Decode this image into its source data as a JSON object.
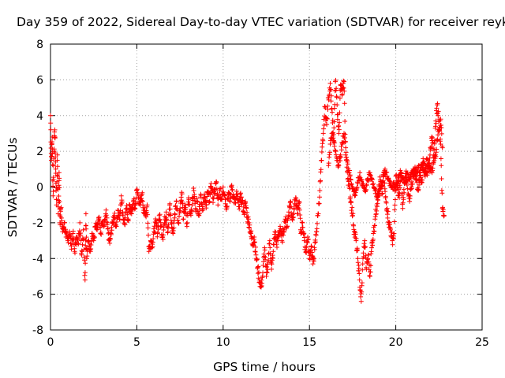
{
  "chart_data": {
    "type": "scatter",
    "title": "Day 359 of 2022, Sidereal Day-to-day VTEC variation (SDTVAR) for receiver reyk",
    "xlabel": "GPS time / hours",
    "ylabel": "SDTVAR / TECUs",
    "xlim": [
      0,
      25
    ],
    "ylim": [
      -8,
      8
    ],
    "xticks": [
      0,
      5,
      10,
      15,
      20,
      25
    ],
    "yticks": [
      -8,
      -6,
      -4,
      -2,
      0,
      2,
      4,
      6,
      8
    ],
    "grid": true,
    "marker": "+",
    "series_color": "#ff0000",
    "series": [
      {
        "name": "SDTVAR",
        "x": [
          0.0,
          0.05,
          0.1,
          0.15,
          0.2,
          0.25,
          0.3,
          0.35,
          0.4,
          0.45,
          0.5,
          0.55,
          0.6,
          0.7,
          0.8,
          0.9,
          1.0,
          1.1,
          1.2,
          1.3,
          1.4,
          1.5,
          1.6,
          1.7,
          1.8,
          1.9,
          2.0,
          2.05,
          2.1,
          2.2,
          2.3,
          2.4,
          2.5,
          2.6,
          2.7,
          2.8,
          2.9,
          3.0,
          3.1,
          3.2,
          3.3,
          3.4,
          3.5,
          3.6,
          3.7,
          3.8,
          3.9,
          4.0,
          4.1,
          4.2,
          4.3,
          4.4,
          4.5,
          4.6,
          4.7,
          4.8,
          4.9,
          5.0,
          5.1,
          5.2,
          5.3,
          5.4,
          5.5,
          5.6,
          5.7,
          5.8,
          5.9,
          6.0,
          6.1,
          6.2,
          6.3,
          6.4,
          6.5,
          6.6,
          6.7,
          6.8,
          6.9,
          7.0,
          7.1,
          7.2,
          7.3,
          7.4,
          7.5,
          7.6,
          7.7,
          7.8,
          7.9,
          8.0,
          8.1,
          8.2,
          8.3,
          8.4,
          8.5,
          8.6,
          8.7,
          8.8,
          8.9,
          9.0,
          9.1,
          9.2,
          9.3,
          9.4,
          9.5,
          9.6,
          9.7,
          9.8,
          9.9,
          10.0,
          10.1,
          10.2,
          10.3,
          10.4,
          10.5,
          10.6,
          10.7,
          10.8,
          10.9,
          11.0,
          11.1,
          11.2,
          11.3,
          11.4,
          11.5,
          11.6,
          11.7,
          11.8,
          11.9,
          12.0,
          12.1,
          12.2,
          12.3,
          12.4,
          12.5,
          12.6,
          12.7,
          12.8,
          12.9,
          13.0,
          13.1,
          13.2,
          13.3,
          13.4,
          13.5,
          13.6,
          13.7,
          13.8,
          13.9,
          14.0,
          14.1,
          14.2,
          14.3,
          14.4,
          14.5,
          14.6,
          14.7,
          14.8,
          14.9,
          15.0,
          15.1,
          15.2,
          15.3,
          15.4,
          15.5,
          15.6,
          15.7,
          15.8,
          15.9,
          16.0,
          16.1,
          16.2,
          16.3,
          16.4,
          16.5,
          16.6,
          16.7,
          16.8,
          16.9,
          17.0,
          17.1,
          17.2,
          17.3,
          17.4,
          17.5,
          17.6,
          17.7,
          17.8,
          17.9,
          18.0,
          18.1,
          18.2,
          18.3,
          18.4,
          18.5,
          18.6,
          18.7,
          18.8,
          18.9,
          19.0,
          19.1,
          19.2,
          19.3,
          19.4,
          19.5,
          19.6,
          19.7,
          19.8,
          19.9,
          20.0,
          20.1,
          20.2,
          20.3,
          20.4,
          20.5,
          20.6,
          20.7,
          20.8,
          20.9,
          21.0,
          21.1,
          21.2,
          21.3,
          21.4,
          21.5,
          21.6,
          21.7,
          21.8,
          21.9,
          22.0,
          22.1,
          22.2,
          22.3,
          22.4,
          22.5,
          22.6,
          22.7,
          22.8
        ],
        "y": [
          4.0,
          1.5,
          2.8,
          -0.5,
          2.0,
          3.2,
          1.0,
          -1.0,
          1.8,
          -1.5,
          0.8,
          -2.0,
          -1.2,
          -2.5,
          -2.0,
          -2.8,
          -3.0,
          -2.5,
          -3.3,
          -2.6,
          -3.6,
          -2.8,
          -3.2,
          -2.0,
          -3.8,
          -2.4,
          -5.2,
          -1.5,
          -4.0,
          -3.0,
          -3.5,
          -2.6,
          -3.0,
          -2.2,
          -2.4,
          -1.8,
          -2.6,
          -2.0,
          -2.2,
          -1.5,
          -2.0,
          -3.0,
          -2.6,
          -2.0,
          -1.6,
          -2.2,
          -1.3,
          -1.8,
          -0.5,
          -1.6,
          -2.1,
          -1.2,
          -1.8,
          -1.0,
          -1.5,
          -0.8,
          -1.2,
          -0.2,
          -0.6,
          -1.0,
          -0.4,
          -1.3,
          -1.6,
          -1.0,
          -3.6,
          -3.0,
          -3.2,
          -2.5,
          -2.0,
          -2.6,
          -1.6,
          -2.2,
          -2.8,
          -2.0,
          -1.4,
          -2.5,
          -1.0,
          -2.0,
          -2.6,
          -1.5,
          -0.8,
          -2.0,
          -1.2,
          -0.3,
          -1.8,
          -1.0,
          -2.2,
          -0.6,
          -1.5,
          -1.0,
          -0.2,
          -1.2,
          -0.8,
          -1.6,
          -0.4,
          -1.2,
          -0.6,
          -1.0,
          -0.3,
          -0.8,
          0.2,
          -0.6,
          -0.4,
          0.3,
          -1.0,
          -0.2,
          -0.7,
          0.0,
          -0.5,
          -1.1,
          -0.3,
          -0.8,
          0.1,
          -0.6,
          -0.9,
          -0.4,
          -1.1,
          -0.6,
          -0.8,
          -1.4,
          -0.9,
          -1.7,
          -2.0,
          -2.6,
          -3.2,
          -2.8,
          -3.8,
          -4.5,
          -5.2,
          -5.6,
          -4.8,
          -3.4,
          -5.0,
          -4.2,
          -3.0,
          -4.6,
          -3.6,
          -2.5,
          -3.2,
          -2.8,
          -2.2,
          -3.0,
          -2.4,
          -1.8,
          -2.2,
          -1.4,
          -0.8,
          -1.8,
          -1.2,
          -0.6,
          -1.5,
          -0.8,
          -2.6,
          -2.0,
          -3.0,
          -3.6,
          -2.8,
          -4.0,
          -3.3,
          -4.3,
          -3.5,
          -2.5,
          -1.5,
          -0.2,
          1.5,
          3.0,
          4.5,
          3.5,
          5.0,
          5.8,
          4.4,
          2.5,
          5.9,
          4.6,
          3.0,
          5.7,
          5.2,
          5.9,
          1.8,
          0.8,
          0.0,
          -0.8,
          -1.6,
          -2.5,
          -3.0,
          -4.0,
          -5.2,
          -6.4,
          -4.0,
          -3.0,
          -4.6,
          -3.8,
          -5.0,
          -3.4,
          -2.6,
          -1.8,
          -1.0,
          -0.2,
          0.4,
          -0.4,
          0.8,
          -0.6,
          -1.2,
          -2.0,
          -2.4,
          -3.0,
          -2.6,
          0.6,
          0.0,
          -0.6,
          0.8,
          -1.2,
          0.2,
          0.9,
          -0.4,
          -0.8,
          0.0,
          0.6,
          1.0,
          0.4,
          -0.2,
          0.8,
          0.4,
          1.2,
          0.6,
          1.6,
          1.0,
          2.2,
          2.6,
          1.8,
          3.4,
          4.6,
          3.8,
          2.4,
          -1.2,
          -1.6
        ],
        "x2": [
          16.1,
          16.2,
          16.3,
          16.4,
          16.5,
          16.6,
          16.7,
          16.8,
          16.9,
          17.0,
          17.1,
          17.2,
          17.3,
          17.4,
          17.5,
          17.6,
          17.7,
          17.8,
          17.9,
          18.0,
          18.1,
          18.2,
          18.3,
          18.4,
          18.5,
          18.6,
          18.7,
          18.8,
          18.9,
          19.0,
          19.1,
          19.2,
          19.3,
          19.4,
          19.5,
          19.6,
          19.7,
          19.8,
          19.9,
          20.0,
          20.1,
          20.2,
          20.3,
          20.4,
          20.5,
          20.6,
          20.7,
          20.8,
          20.9,
          21.0,
          21.1,
          21.2,
          21.3,
          21.4,
          21.5,
          21.6,
          21.7,
          21.8,
          21.9,
          22.0,
          22.1,
          22.2,
          22.3,
          22.4,
          22.5,
          22.6,
          22.7
        ],
        "y2": [
          1.2,
          2.4,
          3.0,
          2.6,
          2.0,
          1.6,
          1.2,
          1.8,
          2.4,
          3.0,
          2.2,
          1.4,
          0.8,
          0.4,
          0.0,
          -0.4,
          -0.2,
          0.2,
          0.6,
          0.4,
          0.2,
          -0.2,
          0.1,
          0.4,
          0.8,
          0.5,
          0.2,
          -0.2,
          -0.6,
          -0.4,
          -0.1,
          0.3,
          0.6,
          0.8,
          0.6,
          0.4,
          0.2,
          0.1,
          0.0,
          0.0,
          0.3,
          0.6,
          0.8,
          0.5,
          0.2,
          0.4,
          0.7,
          0.5,
          0.8,
          1.0,
          0.7,
          0.9,
          1.1,
          0.8,
          1.2,
          1.4,
          1.0,
          0.8,
          1.2,
          1.0,
          0.8,
          1.4,
          1.8,
          2.6,
          3.2,
          3.8,
          2.2
        ]
      }
    ]
  }
}
